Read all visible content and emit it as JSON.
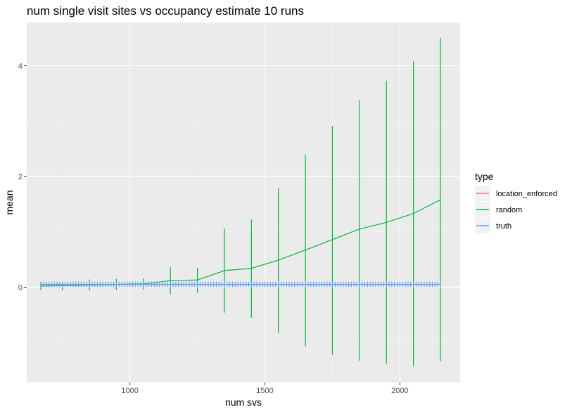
{
  "chart_data": {
    "type": "line",
    "title": "num single visit sites vs occupancy estimate 10 runs",
    "xlabel": "num svs",
    "ylabel": "mean",
    "xlim": [
      618,
      2223
    ],
    "ylim": [
      -1.72,
      4.78
    ],
    "x_ticks": [
      1000,
      1500,
      2000
    ],
    "x_tick_labels": [
      "1000",
      "1500",
      "2000"
    ],
    "x_minor_ticks": [
      750,
      1250,
      1750
    ],
    "y_ticks": [
      0,
      2,
      4
    ],
    "y_tick_labels": [
      "0",
      "2",
      "4"
    ],
    "y_minor_ticks": [
      -1,
      1,
      3
    ],
    "grid": true,
    "legend": {
      "title": "type",
      "position": "right",
      "entries": [
        {
          "name": "location_enforced",
          "color": "#F8766D"
        },
        {
          "name": "random",
          "color": "#00BA38"
        },
        {
          "name": "truth",
          "color": "#619CFF"
        }
      ]
    },
    "series": [
      {
        "name": "truth",
        "color": "#619CFF",
        "x_start": 670,
        "x_end": 2150,
        "x_step": 10,
        "mean": 0.05,
        "error_low": 0.0,
        "error_high": 0.1
      },
      {
        "name": "random",
        "color": "#00BA38",
        "x": [
          670,
          750,
          850,
          950,
          1050,
          1150,
          1250,
          1350,
          1450,
          1550,
          1650,
          1750,
          1850,
          1950,
          2050,
          2150
        ],
        "values": [
          0.02,
          0.03,
          0.04,
          0.05,
          0.06,
          0.12,
          0.13,
          0.3,
          0.34,
          0.49,
          0.67,
          0.86,
          1.05,
          1.17,
          1.33,
          1.58
        ],
        "error_low": [
          -0.05,
          -0.06,
          -0.06,
          -0.05,
          -0.04,
          -0.13,
          -0.1,
          -0.46,
          -0.55,
          -0.82,
          -1.07,
          -1.22,
          -1.33,
          -1.38,
          -1.43,
          -1.34
        ],
        "error_high": [
          0.09,
          0.1,
          0.14,
          0.15,
          0.16,
          0.36,
          0.35,
          1.06,
          1.22,
          1.79,
          2.39,
          2.91,
          3.38,
          3.73,
          4.08,
          4.5
        ]
      },
      {
        "name": "location_enforced",
        "color": "#F8766D",
        "x": [
          670,
          680,
          690,
          700,
          710,
          720
        ],
        "values": [
          0.04,
          0.05,
          0.05,
          0.04,
          0.05,
          0.05
        ]
      }
    ]
  }
}
